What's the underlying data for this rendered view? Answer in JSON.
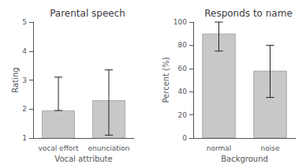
{
  "chart_data": [
    {
      "type": "bar",
      "title": "Parental speech",
      "xlabel": "Vocal attribute",
      "ylabel": "Rating",
      "categories": [
        "vocal effort",
        "enunciation"
      ],
      "values": [
        1.95,
        2.3
      ],
      "errors_upper": [
        1.15,
        1.05
      ],
      "errors_lower": [
        0.0,
        1.2
      ],
      "color": "#c8c8c8",
      "ylim": [
        1,
        5
      ],
      "yticks": [
        1,
        2,
        3,
        4,
        5
      ],
      "grid": false
    },
    {
      "type": "bar",
      "title": "Responds to name",
      "xlabel": "Background",
      "ylabel": "Percent (%)",
      "categories": [
        "normal",
        "noise"
      ],
      "values": [
        90,
        58
      ],
      "errors_upper": [
        10,
        22
      ],
      "errors_lower": [
        15,
        23
      ],
      "color": "#c8c8c8",
      "ylim": [
        0,
        100
      ],
      "yticks": [
        0,
        20,
        40,
        60,
        80,
        100
      ],
      "grid": false
    }
  ]
}
